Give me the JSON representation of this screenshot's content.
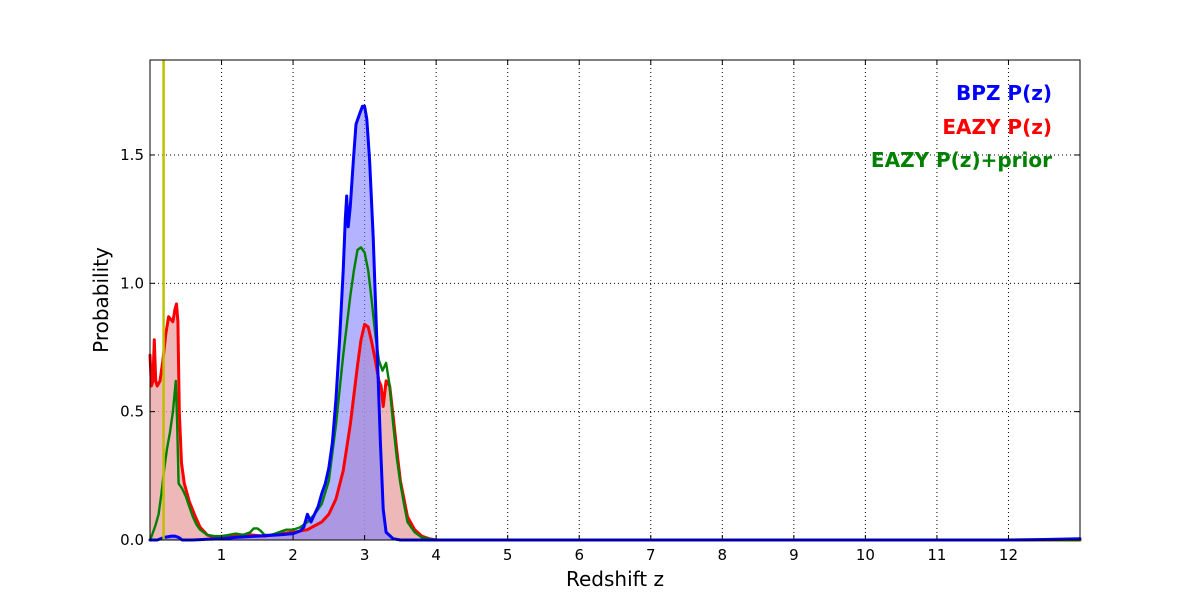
{
  "chart_data": {
    "type": "area",
    "title": "",
    "xlabel": "Redshift z",
    "ylabel": "Probability",
    "xlim": [
      0,
      13
    ],
    "ylim": [
      0,
      1.87
    ],
    "xticks": [
      1,
      2,
      3,
      4,
      5,
      6,
      7,
      8,
      9,
      10,
      11,
      12
    ],
    "xtick_labels": [
      "1",
      "2",
      "3",
      "4",
      "5",
      "6",
      "7",
      "8",
      "9",
      "10",
      "11",
      "12"
    ],
    "yticks": [
      0.0,
      0.5,
      1.0,
      1.5
    ],
    "ytick_labels": [
      "0.0",
      "0.5",
      "1.0",
      "1.5"
    ],
    "grid": true,
    "legend_position": "top-right",
    "reference_line": {
      "x": 0.19,
      "color": "#bfbf00"
    },
    "series": [
      {
        "name": "BPZ P(z)",
        "color": "#0000ff",
        "fill": "#8080ff",
        "points": [
          [
            0.0,
            0.0
          ],
          [
            0.1,
            0.0
          ],
          [
            0.2,
            0.01
          ],
          [
            0.3,
            0.015
          ],
          [
            0.35,
            0.015
          ],
          [
            0.4,
            0.01
          ],
          [
            0.45,
            0.0
          ],
          [
            0.6,
            0.0
          ],
          [
            0.8,
            0.003
          ],
          [
            1.0,
            0.005
          ],
          [
            1.2,
            0.01
          ],
          [
            1.5,
            0.015
          ],
          [
            1.8,
            0.02
          ],
          [
            2.0,
            0.025
          ],
          [
            2.1,
            0.035
          ],
          [
            2.15,
            0.05
          ],
          [
            2.2,
            0.1
          ],
          [
            2.25,
            0.07
          ],
          [
            2.3,
            0.1
          ],
          [
            2.35,
            0.13
          ],
          [
            2.4,
            0.18
          ],
          [
            2.45,
            0.22
          ],
          [
            2.5,
            0.28
          ],
          [
            2.55,
            0.38
          ],
          [
            2.6,
            0.55
          ],
          [
            2.65,
            0.78
          ],
          [
            2.7,
            1.05
          ],
          [
            2.73,
            1.25
          ],
          [
            2.75,
            1.34
          ],
          [
            2.77,
            1.22
          ],
          [
            2.8,
            1.3
          ],
          [
            2.84,
            1.47
          ],
          [
            2.88,
            1.62
          ],
          [
            2.93,
            1.66
          ],
          [
            2.97,
            1.69
          ],
          [
            3.0,
            1.69
          ],
          [
            3.03,
            1.64
          ],
          [
            3.07,
            1.48
          ],
          [
            3.12,
            1.18
          ],
          [
            3.17,
            0.78
          ],
          [
            3.22,
            0.38
          ],
          [
            3.26,
            0.12
          ],
          [
            3.3,
            0.03
          ],
          [
            3.4,
            0.005
          ],
          [
            3.5,
            0.0
          ],
          [
            4.0,
            0.0
          ],
          [
            8.0,
            0.0
          ],
          [
            12.0,
            0.0
          ],
          [
            12.5,
            0.002
          ],
          [
            13.0,
            0.005
          ]
        ]
      },
      {
        "name": "EAZY P(z)",
        "color": "#ff0000",
        "fill": "#e8a0a0",
        "points": [
          [
            0.0,
            0.72
          ],
          [
            0.01,
            0.66
          ],
          [
            0.02,
            0.6
          ],
          [
            0.04,
            0.62
          ],
          [
            0.06,
            0.78
          ],
          [
            0.08,
            0.62
          ],
          [
            0.1,
            0.6
          ],
          [
            0.14,
            0.62
          ],
          [
            0.18,
            0.7
          ],
          [
            0.22,
            0.8
          ],
          [
            0.26,
            0.87
          ],
          [
            0.29,
            0.86
          ],
          [
            0.32,
            0.85
          ],
          [
            0.35,
            0.9
          ],
          [
            0.37,
            0.92
          ],
          [
            0.39,
            0.85
          ],
          [
            0.41,
            0.5
          ],
          [
            0.44,
            0.3
          ],
          [
            0.48,
            0.22
          ],
          [
            0.55,
            0.15
          ],
          [
            0.62,
            0.1
          ],
          [
            0.7,
            0.05
          ],
          [
            0.8,
            0.02
          ],
          [
            0.9,
            0.01
          ],
          [
            1.0,
            0.01
          ],
          [
            1.2,
            0.02
          ],
          [
            1.4,
            0.02
          ],
          [
            1.6,
            0.015
          ],
          [
            1.8,
            0.025
          ],
          [
            2.0,
            0.03
          ],
          [
            2.2,
            0.04
          ],
          [
            2.4,
            0.07
          ],
          [
            2.5,
            0.1
          ],
          [
            2.6,
            0.16
          ],
          [
            2.7,
            0.27
          ],
          [
            2.8,
            0.45
          ],
          [
            2.9,
            0.68
          ],
          [
            2.95,
            0.78
          ],
          [
            3.0,
            0.84
          ],
          [
            3.05,
            0.83
          ],
          [
            3.1,
            0.77
          ],
          [
            3.15,
            0.7
          ],
          [
            3.2,
            0.62
          ],
          [
            3.23,
            0.6
          ],
          [
            3.26,
            0.52
          ],
          [
            3.3,
            0.62
          ],
          [
            3.35,
            0.6
          ],
          [
            3.4,
            0.48
          ],
          [
            3.45,
            0.35
          ],
          [
            3.5,
            0.23
          ],
          [
            3.55,
            0.16
          ],
          [
            3.6,
            0.09
          ],
          [
            3.7,
            0.04
          ],
          [
            3.8,
            0.015
          ],
          [
            3.9,
            0.005
          ],
          [
            4.0,
            0.0
          ],
          [
            13.0,
            0.0
          ]
        ]
      },
      {
        "name": "EAZY P(z)+prior",
        "color": "#008000",
        "fill": "",
        "points": [
          [
            0.0,
            0.0
          ],
          [
            0.03,
            0.02
          ],
          [
            0.08,
            0.06
          ],
          [
            0.12,
            0.1
          ],
          [
            0.16,
            0.18
          ],
          [
            0.2,
            0.28
          ],
          [
            0.24,
            0.36
          ],
          [
            0.28,
            0.42
          ],
          [
            0.32,
            0.5
          ],
          [
            0.36,
            0.62
          ],
          [
            0.38,
            0.45
          ],
          [
            0.4,
            0.22
          ],
          [
            0.45,
            0.2
          ],
          [
            0.5,
            0.17
          ],
          [
            0.55,
            0.13
          ],
          [
            0.6,
            0.09
          ],
          [
            0.65,
            0.06
          ],
          [
            0.7,
            0.04
          ],
          [
            0.8,
            0.02
          ],
          [
            0.9,
            0.015
          ],
          [
            1.0,
            0.015
          ],
          [
            1.1,
            0.02
          ],
          [
            1.2,
            0.025
          ],
          [
            1.3,
            0.02
          ],
          [
            1.4,
            0.03
          ],
          [
            1.45,
            0.045
          ],
          [
            1.5,
            0.045
          ],
          [
            1.55,
            0.035
          ],
          [
            1.6,
            0.02
          ],
          [
            1.7,
            0.02
          ],
          [
            1.8,
            0.03
          ],
          [
            1.9,
            0.04
          ],
          [
            2.0,
            0.04
          ],
          [
            2.1,
            0.05
          ],
          [
            2.2,
            0.07
          ],
          [
            2.3,
            0.1
          ],
          [
            2.4,
            0.14
          ],
          [
            2.5,
            0.23
          ],
          [
            2.6,
            0.45
          ],
          [
            2.7,
            0.72
          ],
          [
            2.8,
            0.95
          ],
          [
            2.85,
            1.05
          ],
          [
            2.9,
            1.13
          ],
          [
            2.95,
            1.14
          ],
          [
            3.0,
            1.12
          ],
          [
            3.05,
            1.05
          ],
          [
            3.1,
            0.93
          ],
          [
            3.15,
            0.8
          ],
          [
            3.2,
            0.7
          ],
          [
            3.25,
            0.66
          ],
          [
            3.3,
            0.69
          ],
          [
            3.35,
            0.6
          ],
          [
            3.4,
            0.45
          ],
          [
            3.45,
            0.32
          ],
          [
            3.5,
            0.22
          ],
          [
            3.55,
            0.14
          ],
          [
            3.6,
            0.07
          ],
          [
            3.7,
            0.03
          ],
          [
            3.8,
            0.01
          ],
          [
            4.0,
            0.0
          ],
          [
            13.0,
            0.0
          ]
        ]
      }
    ]
  }
}
